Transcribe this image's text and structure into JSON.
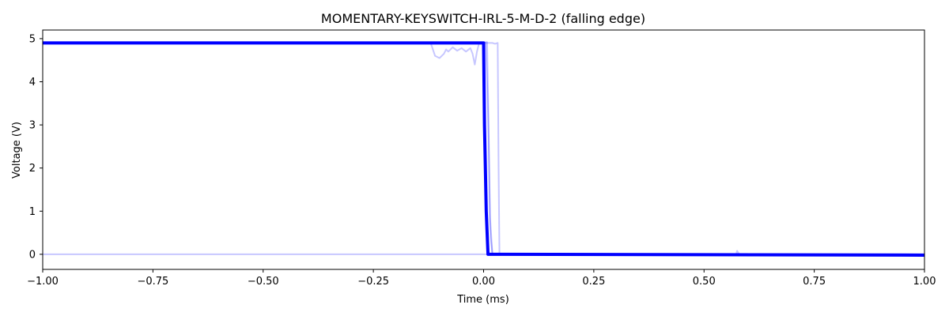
{
  "chart_data": {
    "type": "line",
    "title": "MOMENTARY-KEYSWITCH-IRL-5-M-D-2 (falling edge)",
    "xlabel": "Time (ms)",
    "ylabel": "Voltage (V)",
    "xlim": [
      -1.0,
      1.0
    ],
    "ylim": [
      -0.35,
      5.2
    ],
    "x_ticks": [
      -1.0,
      -0.75,
      -0.5,
      -0.25,
      0.0,
      0.25,
      0.5,
      0.75,
      1.0
    ],
    "x_tick_labels": [
      "−1.00",
      "−0.75",
      "−0.50",
      "−0.25",
      "0.00",
      "0.25",
      "0.50",
      "0.75",
      "1.00"
    ],
    "y_ticks": [
      0,
      1,
      2,
      3,
      4,
      5
    ],
    "y_tick_labels": [
      "0",
      "1",
      "2",
      "3",
      "4",
      "5"
    ],
    "grid": false,
    "line_color": "#0000ff",
    "series": [
      {
        "style": "bold",
        "x": [
          -1.0,
          0.0,
          0.002,
          0.006,
          0.01,
          1.0
        ],
        "y": [
          4.9,
          4.9,
          3.0,
          1.0,
          0.0,
          -0.02
        ]
      },
      {
        "style": "faint",
        "x": [
          -1.0,
          -0.12,
          -0.11,
          -0.1,
          -0.09,
          -0.085,
          -0.08,
          -0.07,
          -0.06,
          -0.05,
          -0.04,
          -0.03,
          -0.025,
          -0.02,
          -0.015,
          -0.01,
          0.005,
          0.01,
          0.015,
          0.02,
          1.0
        ],
        "y": [
          4.9,
          4.9,
          4.6,
          4.55,
          4.65,
          4.75,
          4.7,
          4.8,
          4.72,
          4.78,
          4.7,
          4.78,
          4.65,
          4.4,
          4.7,
          4.9,
          4.9,
          3.3,
          0.8,
          0.0,
          0.0
        ]
      },
      {
        "style": "faint",
        "x": [
          -1.0,
          0.02,
          0.026,
          0.032,
          0.034,
          0.036,
          1.0
        ],
        "y": [
          4.9,
          4.9,
          4.88,
          4.9,
          2.0,
          0.0,
          0.0
        ]
      },
      {
        "style": "faint",
        "x": [
          -1.0,
          0.008,
          0.012,
          0.014,
          0.016,
          0.02,
          1.0
        ],
        "y": [
          4.92,
          4.92,
          2.5,
          0.9,
          0.4,
          0.0,
          0.0
        ]
      },
      {
        "style": "faint",
        "x": [
          -1.0,
          0.565,
          0.573,
          0.575,
          0.58,
          1.0
        ],
        "y": [
          0.0,
          0.0,
          0.0,
          0.08,
          0.0,
          0.0
        ]
      }
    ]
  }
}
